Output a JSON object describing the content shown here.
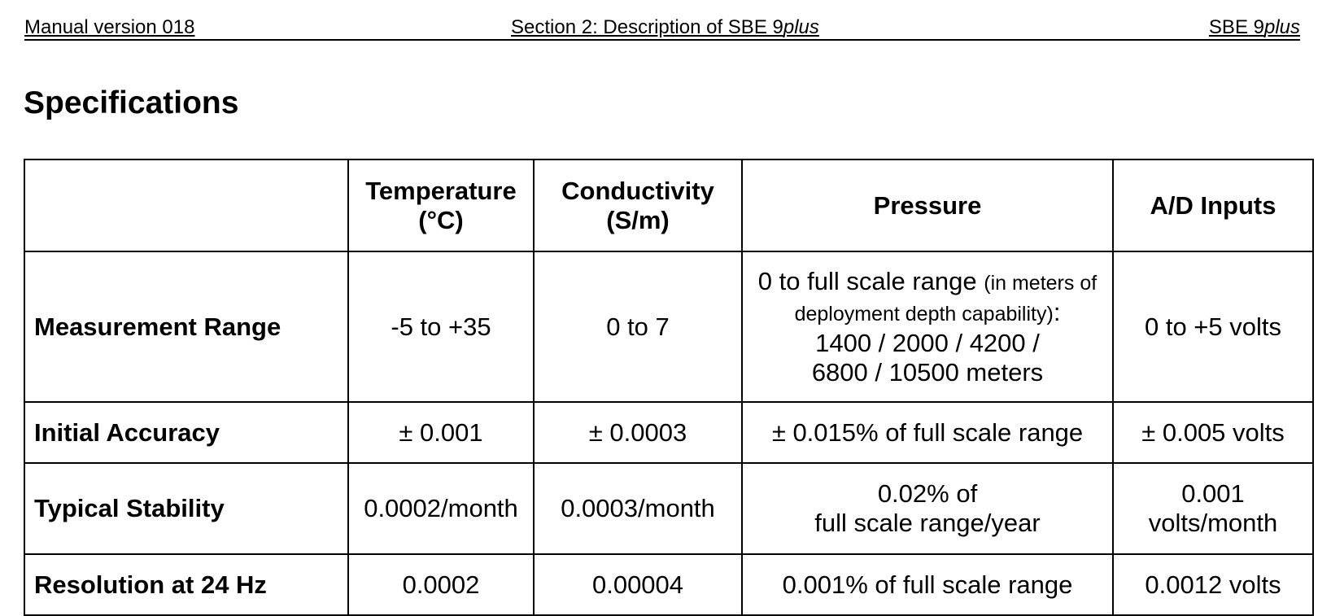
{
  "header": {
    "left": "Manual version 018",
    "center_prefix": "Section 2: Description of SBE 9",
    "center_italic": "plus",
    "right_prefix": "SBE 9",
    "right_italic": "plus"
  },
  "title": "Specifications",
  "table": {
    "columns": [
      {
        "line1": "",
        "line2": ""
      },
      {
        "line1": "Temperature",
        "line2": "(°C)"
      },
      {
        "line1": "Conductivity",
        "line2": "(S/m)"
      },
      {
        "line1": "Pressure",
        "line2": ""
      },
      {
        "line1": "A/D Inputs",
        "line2": ""
      }
    ],
    "rows": [
      {
        "label": "Measurement Range",
        "temperature": "-5 to +35",
        "conductivity": "0 to 7",
        "pressure": {
          "line1_main": "0 to full scale range",
          "line1_small": "(in meters of",
          "line2_small": "deployment depth capability)",
          "line2_colon": ":",
          "line3": "1400 / 2000 / 4200 /",
          "line4": "6800 / 10500 meters"
        },
        "ad_inputs": "0 to +5 volts"
      },
      {
        "label": "Initial Accuracy",
        "temperature": "± 0.001",
        "conductivity": "± 0.0003",
        "pressure": {
          "line1": "± 0.015% of full scale range",
          "line2": ""
        },
        "ad_inputs": {
          "line1": "± 0.005 volts",
          "line2": ""
        }
      },
      {
        "label": "Typical Stability",
        "temperature": "0.0002/month",
        "conductivity": "0.0003/month",
        "pressure": {
          "line1": "0.02% of",
          "line2": "full scale range/year"
        },
        "ad_inputs": {
          "line1": "0.001",
          "line2": "volts/month"
        }
      },
      {
        "label": "Resolution at 24 Hz",
        "temperature": "0.0002",
        "conductivity": "0.00004",
        "pressure": {
          "line1": "0.001% of full scale range",
          "line2": ""
        },
        "ad_inputs": {
          "line1": "0.0012 volts",
          "line2": ""
        }
      }
    ]
  }
}
